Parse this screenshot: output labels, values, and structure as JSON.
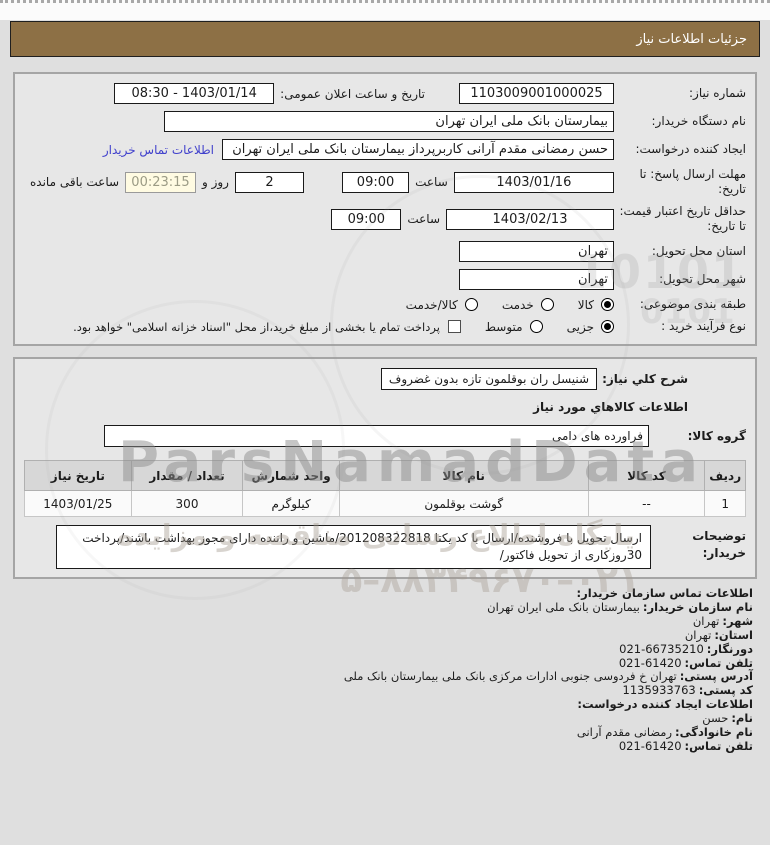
{
  "title_bar": {
    "label": "جزئیات اطلاعات نیاز"
  },
  "form": {
    "need_number": {
      "label": "شماره نیاز:",
      "value": "1103009001000025"
    },
    "announce": {
      "label": "تاریخ و ساعت اعلان عمومی:",
      "value": "1403/01/14 - 08:30"
    },
    "buyer_org": {
      "label": "نام دستگاه خریدار:",
      "value": "بیمارستان بانک ملی ایران تهران"
    },
    "creator": {
      "label": "ایجاد کننده درخواست:",
      "value": "حسن رمضانی مقدم آرانی کاربرپرداز بیمارستان بانک ملی ایران تهران",
      "contact_link": "اطلاعات تماس خریدار"
    },
    "deadline": {
      "label": "مهلت ارسال پاسخ: تا تاریخ:",
      "date": "1403/01/16",
      "hour_label": "ساعت",
      "time": "09:00",
      "days": "2",
      "days_label": "روز و",
      "countdown": "00:23:15",
      "remaining_label": "ساعت باقی مانده"
    },
    "validity": {
      "label": "حداقل تاریخ اعتبار قیمت: تا تاریخ:",
      "date": "1403/02/13",
      "hour_label": "ساعت",
      "time": "09:00"
    },
    "province": {
      "label": "استان محل تحویل:",
      "value": "تهران"
    },
    "city": {
      "label": "شهر محل تحویل:",
      "value": "تهران"
    },
    "classification": {
      "label": "طبقه بندی موضوعی:",
      "options": [
        "کالا",
        "خدمت",
        "کالا/خدمت"
      ],
      "selected": "کالا"
    },
    "process": {
      "label": "نوع فرآیند خرید :",
      "options": [
        "جزیی",
        "متوسط"
      ],
      "selected": "جزیی",
      "treasury_note": "پرداخت تمام یا بخشی از مبلغ خرید،از محل \"اسناد خزانه اسلامی\" خواهد بود.",
      "treasury_checked": false
    }
  },
  "need": {
    "desc_label": "شرح کلي نیاز:",
    "desc_value": "شنیسل ران بوقلمون تازه بدون غضروف",
    "goods_heading": "اطلاعات کالاهاي مورد نیاز",
    "group_label": "گروه کالا:",
    "group_value": "فراورده های دامی",
    "table": {
      "headers": [
        "ردیف",
        "کد کالا",
        "نام کالا",
        "واحد شمارش",
        "تعداد / مقدار",
        "تاریخ نیاز"
      ],
      "rows": [
        [
          "1",
          "--",
          "گوشت بوقلمون",
          "کیلوگرم",
          "300",
          "1403/01/25"
        ]
      ]
    },
    "notes_label": "توضیحات خریدار:",
    "notes_value": "ارسال تحویل با فروشنده/ارسال با کد یکتا 201208322818/ماشین و راننده دارای مجوز بهداشت باشند/پرداخت 30روزکاری از تحویل فاکتور/"
  },
  "contact": {
    "org_heading": "اطلاعات تماس سازمان خریدار:",
    "org_lines": [
      {
        "label": "نام سازمان خریدار:",
        "value": "بیمارستان بانک ملی ایران تهران"
      },
      {
        "label": "شهر:",
        "value": "تهران"
      },
      {
        "label": "استان:",
        "value": "تهران"
      },
      {
        "label": "دورنگار:",
        "value": "66735210-021"
      },
      {
        "label": "تلفن تماس:",
        "value": "61420-021"
      },
      {
        "label": "آدرس پستی:",
        "value": "تهران خ فردوسی جنوبی ادارات مرکزی بانک ملی بیمارستان بانک ملی"
      },
      {
        "label": "کد پستی:",
        "value": "1135933763"
      }
    ],
    "creator_heading": "اطلاعات ایجاد کننده درخواست:",
    "creator_lines": [
      {
        "label": "نام:",
        "value": "حسن"
      },
      {
        "label": "نام خانوادگی:",
        "value": "رمضانی مقدم آرانی"
      },
      {
        "label": "تلفن تماس:",
        "value": "61420-021"
      }
    ]
  },
  "watermark": {
    "brand": "ParsNamadData",
    "fa_line1": "پایگاه اطلاع رسانی مناقصه و مزایده",
    "fa_line2": "۰۲۱–۸۸۳۴۹۶۷۰–۵",
    "binary1": "10101",
    "binary2": "0101"
  },
  "colors": {
    "accent_brown": "#8d7045",
    "link_blue": "#4040cc",
    "countdown_bg": "#fffbe2",
    "panel_border": "#a5a5a5"
  }
}
